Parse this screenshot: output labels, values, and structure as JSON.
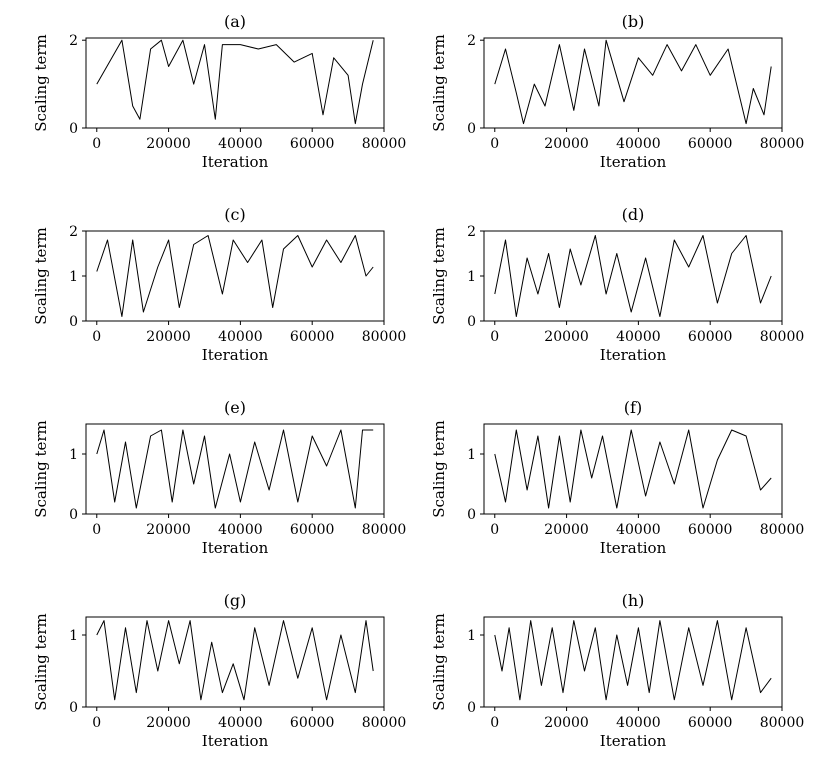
{
  "chart_data": [
    {
      "type": "line",
      "title": "(a)",
      "xlabel": "Iteration",
      "ylabel": "Scaling term",
      "xlim": [
        -3000,
        80000
      ],
      "ylim": [
        0,
        2.05
      ],
      "xticks": [
        0,
        20000,
        40000,
        60000,
        80000
      ],
      "yticks": [
        0,
        2
      ],
      "series": [
        {
          "x": [
            0,
            7000,
            10000,
            12000,
            15000,
            18000,
            20000,
            24000,
            27000,
            30000,
            33000,
            35000,
            40000,
            45000,
            50000,
            55000,
            60000,
            63000,
            66000,
            70000,
            72000,
            74000,
            77000
          ],
          "y": [
            1.0,
            2.0,
            0.5,
            0.2,
            1.8,
            2.0,
            1.4,
            2.0,
            1.0,
            1.9,
            0.2,
            1.9,
            1.9,
            1.8,
            1.9,
            1.5,
            1.7,
            0.3,
            1.6,
            1.2,
            0.1,
            1.0,
            2.0
          ]
        }
      ]
    },
    {
      "type": "line",
      "title": "(b)",
      "xlabel": "Iteration",
      "ylabel": "Scaling term",
      "xlim": [
        -3000,
        80000
      ],
      "ylim": [
        0,
        2.05
      ],
      "xticks": [
        0,
        20000,
        40000,
        60000,
        80000
      ],
      "yticks": [
        0,
        2
      ],
      "series": [
        {
          "x": [
            0,
            3000,
            6000,
            8000,
            11000,
            14000,
            18000,
            22000,
            25000,
            29000,
            31000,
            36000,
            40000,
            44000,
            48000,
            52000,
            56000,
            60000,
            65000,
            70000,
            72000,
            75000,
            77000
          ],
          "y": [
            1.0,
            1.8,
            0.8,
            0.1,
            1.0,
            0.5,
            1.9,
            0.4,
            1.8,
            0.5,
            2.0,
            0.6,
            1.6,
            1.2,
            1.9,
            1.3,
            1.9,
            1.2,
            1.8,
            0.1,
            0.9,
            0.3,
            1.4
          ]
        }
      ]
    },
    {
      "type": "line",
      "title": "(c)",
      "xlabel": "Iteration",
      "ylabel": "Scaling term",
      "xlim": [
        -3000,
        80000
      ],
      "ylim": [
        0,
        2.0
      ],
      "xticks": [
        0,
        20000,
        40000,
        60000,
        80000
      ],
      "yticks": [
        0,
        1,
        2
      ],
      "series": [
        {
          "x": [
            0,
            3000,
            7000,
            10000,
            13000,
            17000,
            20000,
            23000,
            27000,
            31000,
            35000,
            38000,
            42000,
            46000,
            49000,
            52000,
            56000,
            60000,
            64000,
            68000,
            72000,
            75000,
            77000
          ],
          "y": [
            1.1,
            1.8,
            0.1,
            1.8,
            0.2,
            1.2,
            1.8,
            0.3,
            1.7,
            1.9,
            0.6,
            1.8,
            1.3,
            1.8,
            0.3,
            1.6,
            1.9,
            1.2,
            1.8,
            1.3,
            1.9,
            1.0,
            1.2
          ]
        }
      ]
    },
    {
      "type": "line",
      "title": "(d)",
      "xlabel": "Iteration",
      "ylabel": "Scaling term",
      "xlim": [
        -3000,
        80000
      ],
      "ylim": [
        0,
        2.0
      ],
      "xticks": [
        0,
        20000,
        40000,
        60000,
        80000
      ],
      "yticks": [
        0,
        1,
        2
      ],
      "series": [
        {
          "x": [
            0,
            3000,
            6000,
            9000,
            12000,
            15000,
            18000,
            21000,
            24000,
            28000,
            31000,
            34000,
            38000,
            42000,
            46000,
            50000,
            54000,
            58000,
            62000,
            66000,
            70000,
            74000,
            77000
          ],
          "y": [
            0.6,
            1.8,
            0.1,
            1.4,
            0.6,
            1.5,
            0.3,
            1.6,
            0.8,
            1.9,
            0.6,
            1.5,
            0.2,
            1.4,
            0.1,
            1.8,
            1.2,
            1.9,
            0.4,
            1.5,
            1.9,
            0.4,
            1.0
          ]
        }
      ]
    },
    {
      "type": "line",
      "title": "(e)",
      "xlabel": "Iteration",
      "ylabel": "Scaling term",
      "xlim": [
        -3000,
        80000
      ],
      "ylim": [
        0,
        1.5
      ],
      "xticks": [
        0,
        20000,
        40000,
        60000,
        80000
      ],
      "yticks": [
        0,
        1
      ],
      "series": [
        {
          "x": [
            0,
            2000,
            5000,
            8000,
            11000,
            15000,
            18000,
            21000,
            24000,
            27000,
            30000,
            33000,
            37000,
            40000,
            44000,
            48000,
            52000,
            56000,
            60000,
            64000,
            68000,
            72000,
            74000,
            77000
          ],
          "y": [
            1.0,
            1.4,
            0.2,
            1.2,
            0.1,
            1.3,
            1.4,
            0.2,
            1.4,
            0.5,
            1.3,
            0.1,
            1.0,
            0.2,
            1.2,
            0.4,
            1.4,
            0.2,
            1.3,
            0.8,
            1.4,
            0.1,
            1.4,
            1.4
          ]
        }
      ]
    },
    {
      "type": "line",
      "title": "(f)",
      "xlabel": "Iteration",
      "ylabel": "Scaling term",
      "xlim": [
        -3000,
        80000
      ],
      "ylim": [
        0,
        1.5
      ],
      "xticks": [
        0,
        20000,
        40000,
        60000,
        80000
      ],
      "yticks": [
        0,
        1
      ],
      "series": [
        {
          "x": [
            0,
            3000,
            6000,
            9000,
            12000,
            15000,
            18000,
            21000,
            24000,
            27000,
            30000,
            34000,
            38000,
            42000,
            46000,
            50000,
            54000,
            58000,
            62000,
            66000,
            70000,
            74000,
            77000
          ],
          "y": [
            1.0,
            0.2,
            1.4,
            0.4,
            1.3,
            0.1,
            1.3,
            0.2,
            1.4,
            0.6,
            1.3,
            0.1,
            1.4,
            0.3,
            1.2,
            0.5,
            1.4,
            0.1,
            0.9,
            1.4,
            1.3,
            0.4,
            0.6
          ]
        }
      ]
    },
    {
      "type": "line",
      "title": "(g)",
      "xlabel": "Iteration",
      "ylabel": "Scaling term",
      "xlim": [
        -3000,
        80000
      ],
      "ylim": [
        0,
        1.25
      ],
      "xticks": [
        0,
        20000,
        40000,
        60000,
        80000
      ],
      "yticks": [
        0,
        1
      ],
      "series": [
        {
          "x": [
            0,
            2000,
            5000,
            8000,
            11000,
            14000,
            17000,
            20000,
            23000,
            26000,
            29000,
            32000,
            35000,
            38000,
            41000,
            44000,
            48000,
            52000,
            56000,
            60000,
            64000,
            68000,
            72000,
            75000,
            77000
          ],
          "y": [
            1.0,
            1.2,
            0.1,
            1.1,
            0.2,
            1.2,
            0.5,
            1.2,
            0.6,
            1.2,
            0.1,
            0.9,
            0.2,
            0.6,
            0.1,
            1.1,
            0.3,
            1.2,
            0.4,
            1.1,
            0.1,
            1.0,
            0.2,
            1.2,
            0.5
          ]
        }
      ]
    },
    {
      "type": "line",
      "title": "(h)",
      "xlabel": "Iteration",
      "ylabel": "Scaling term",
      "xlim": [
        -3000,
        80000
      ],
      "ylim": [
        0,
        1.25
      ],
      "xticks": [
        0,
        20000,
        40000,
        60000,
        80000
      ],
      "yticks": [
        0,
        1
      ],
      "series": [
        {
          "x": [
            0,
            2000,
            4000,
            7000,
            10000,
            13000,
            16000,
            19000,
            22000,
            25000,
            28000,
            31000,
            34000,
            37000,
            40000,
            43000,
            46000,
            50000,
            54000,
            58000,
            62000,
            66000,
            70000,
            74000,
            77000
          ],
          "y": [
            1.0,
            0.5,
            1.1,
            0.1,
            1.2,
            0.3,
            1.1,
            0.2,
            1.2,
            0.5,
            1.1,
            0.1,
            1.0,
            0.3,
            1.1,
            0.2,
            1.2,
            0.1,
            1.1,
            0.3,
            1.2,
            0.1,
            1.1,
            0.2,
            0.4
          ]
        }
      ]
    }
  ]
}
